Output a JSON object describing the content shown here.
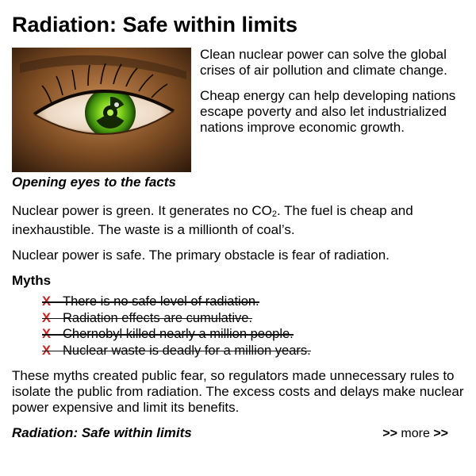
{
  "title": "Radiation: Safe within limits",
  "intro": {
    "para1": "Clean nuclear power can solve the global crises of air pollution and climate change.",
    "para2": "Cheap energy can help developing nations escape poverty and also let industrialized nations improve economic growth."
  },
  "image_caption": "Opening eyes to the facts",
  "body": {
    "green_pre": "Nuclear power is green. It generates no CO",
    "green_sub": "2",
    "green_post": ". The fuel is cheap and inexhaustible. The waste is a millionth of coal’s.",
    "safe": "Nuclear power is safe. The primary obstacle is fear of radiation."
  },
  "myths": {
    "heading": "Myths",
    "mark": "X",
    "items": [
      "There is no safe level of radiation.",
      "Radiation effects are cumulative.",
      "Chernobyl killed nearly a million people.",
      "Nuclear waste is deadly for a million years."
    ]
  },
  "closing": "These myths created public fear, so regulators made unnecessary rules to isolate the public from radiation. The excess costs and delays make nuclear power expensive and limit its benefits.",
  "footer": {
    "link_label": "Radiation: Safe within limits",
    "more_prefix": ">>",
    "more_label": "more",
    "more_suffix": ">>"
  },
  "colors": {
    "x_mark": "#cc2222",
    "iris": "#6fbe1a"
  },
  "icons": {
    "radiation": "radiation-trefoil-icon"
  }
}
